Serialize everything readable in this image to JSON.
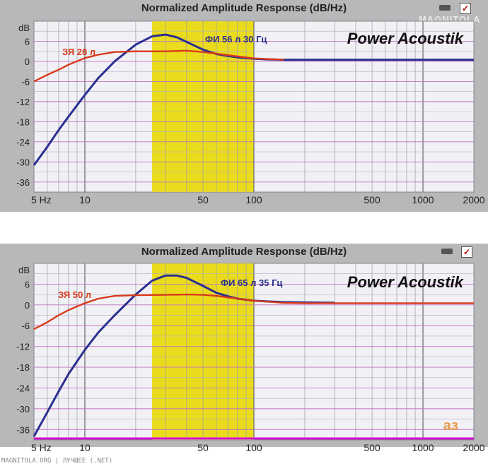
{
  "chart_data": [
    {
      "type": "line",
      "title": "Normalized Amplitude Response (dB/Hz)",
      "ylabel": "dB",
      "xscale": "log",
      "xlim": [
        5,
        2000
      ],
      "ylim": [
        -39,
        12
      ],
      "yticks": [
        6,
        0,
        -6,
        -12,
        -18,
        -24,
        -30,
        -36
      ],
      "xtick_labels": [
        "5 Hz",
        "10",
        "50",
        "100",
        "500",
        "1000",
        "2000"
      ],
      "xtick_values": [
        5,
        10,
        50,
        100,
        500,
        1000,
        2000
      ],
      "highlight_band": [
        25,
        100
      ],
      "brand": "Power Acoustik",
      "series": [
        {
          "name": "ФИ 56 л 30 Гц",
          "color": "#2b2f8f",
          "x": [
            5,
            6,
            7,
            8,
            10,
            12,
            15,
            20,
            25,
            30,
            35,
            40,
            50,
            60,
            70,
            80,
            100,
            120,
            150,
            200,
            300,
            500,
            1000,
            2000
          ],
          "y": [
            -31,
            -25.5,
            -20.5,
            -16.5,
            -10,
            -5,
            0,
            5,
            7.5,
            8,
            7.2,
            5.8,
            3.5,
            2.2,
            1.6,
            1.2,
            0.8,
            0.6,
            0.5,
            0.5,
            0.5,
            0.5,
            0.5,
            0.5
          ]
        },
        {
          "name": "ЗЯ 28 л",
          "color": "#d83a1a",
          "x": [
            5,
            6,
            7,
            8,
            10,
            12,
            15,
            20,
            30,
            40,
            50,
            60,
            80,
            100,
            150
          ],
          "y": [
            -6,
            -4,
            -2.5,
            -1,
            1,
            2,
            2.8,
            3,
            3,
            3.2,
            2.8,
            2.3,
            1.5,
            0.9,
            0.5
          ]
        }
      ]
    },
    {
      "type": "line",
      "title": "Normalized Amplitude Response (dB/Hz)",
      "ylabel": "dB",
      "xscale": "log",
      "xlim": [
        5,
        2000
      ],
      "ylim": [
        -39,
        12
      ],
      "yticks": [
        6,
        0,
        -6,
        -12,
        -18,
        -24,
        -30,
        -36
      ],
      "xtick_labels": [
        "5 Hz",
        "10",
        "50",
        "100",
        "500",
        "1000",
        "2000"
      ],
      "xtick_values": [
        5,
        10,
        50,
        100,
        500,
        1000,
        2000
      ],
      "highlight_band": [
        25,
        100
      ],
      "brand": "Power Acoustik",
      "series": [
        {
          "name": "ФИ 65 л 35 Гц",
          "color": "#2b2f8f",
          "x": [
            5,
            6,
            7,
            8,
            10,
            12,
            15,
            20,
            25,
            30,
            35,
            40,
            50,
            60,
            70,
            80,
            100,
            120,
            150,
            200,
            300
          ],
          "y": [
            -38,
            -31,
            -25,
            -20,
            -13,
            -8,
            -3,
            3,
            7,
            8.5,
            8.5,
            7.8,
            5.5,
            3.5,
            2.5,
            1.8,
            1.2,
            1,
            0.8,
            0.7,
            0.6
          ]
        },
        {
          "name": "ЗЯ 50 л",
          "color": "#d83a1a",
          "x": [
            5,
            6,
            7,
            8,
            10,
            12,
            15,
            20,
            30,
            40,
            50,
            60,
            80,
            100,
            150,
            200,
            500,
            1000,
            2000
          ],
          "y": [
            -7,
            -5,
            -3,
            -1.5,
            0.5,
            1.8,
            2.6,
            2.8,
            2.9,
            3,
            2.9,
            2.6,
            1.8,
            1.2,
            0.6,
            0.5,
            0.5,
            0.5,
            0.5
          ]
        }
      ]
    }
  ],
  "window": {
    "checkmark": "✓",
    "watermark_top": "MAGNITOLA",
    "corner_mark_bottom": "аз",
    "footer": "MAGNITOLA.ORG | ЛУЧШЕЕ (.NET)"
  }
}
